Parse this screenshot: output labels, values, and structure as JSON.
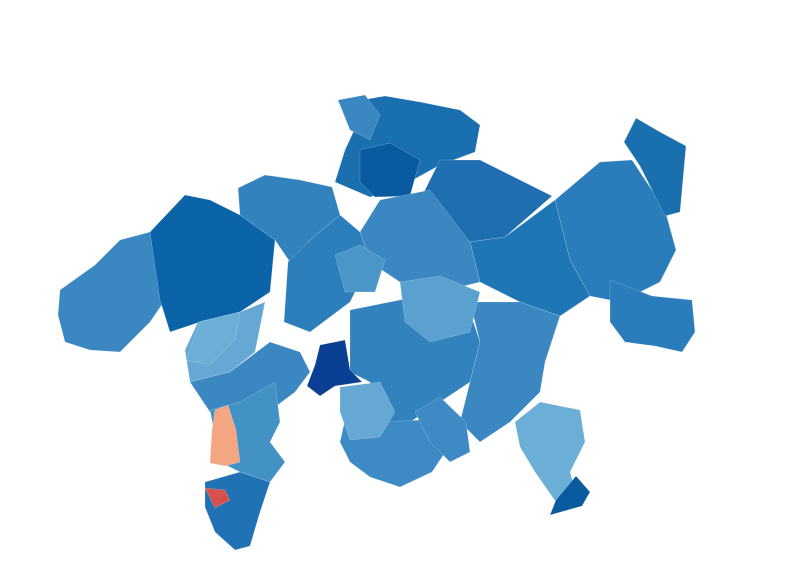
{
  "map": {
    "type": "choropleth",
    "colors": {
      "darkest_blue": "#0b3f93",
      "dark_blue": "#0a5aa0",
      "blue_1": "#0b64a8",
      "blue_2": "#1a6faf",
      "blue_3": "#1f76b5",
      "blue_4": "#2a7dba",
      "blue_5": "#3182bd",
      "blue_6": "#3a87c2",
      "blue_7": "#4a96c9",
      "light_blue": "#64a8d3",
      "salmon": "#f4a582",
      "red": "#d6504d"
    },
    "region_fills": [
      "#3a87c2",
      "#0b64a8",
      "#3182bd",
      "#1a6faf",
      "#0a5aa0",
      "#1f6eb0",
      "#2a7dba",
      "#1a6faf",
      "#2a7dba",
      "#1f76b5",
      "#3a87c2",
      "#2c7fbb",
      "#4a96c9",
      "#3182bd",
      "#3d8ac4",
      "#3a87c2",
      "#5aa0d0",
      "#0b3f93",
      "#64a8d3",
      "#3a87c2",
      "#4292c6",
      "#f4a582",
      "#2171b5",
      "#d6504d",
      "#64a8d3",
      "#3d8ac4",
      "#6baed6",
      "#3a87c2",
      "#6baed6",
      "#0a5aa0"
    ]
  }
}
